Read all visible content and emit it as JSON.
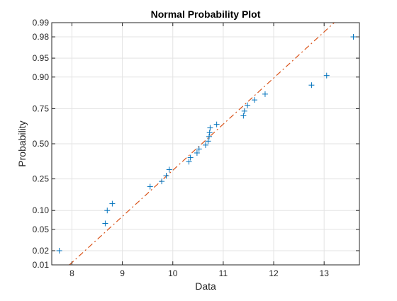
{
  "chart_data": {
    "type": "scatter",
    "title": "Normal Probability Plot",
    "xlabel": "Data",
    "ylabel": "Probability",
    "xlim": [
      7.6,
      13.7
    ],
    "ylim": [
      0.01,
      0.99
    ],
    "y_scale": "normal-probability",
    "grid": true,
    "legend": "none",
    "x_ticks": [
      8,
      9,
      10,
      11,
      12,
      13
    ],
    "x_tick_labels": [
      "8",
      "9",
      "10",
      "11",
      "12",
      "13"
    ],
    "y_ticks": [
      0.01,
      0.02,
      0.05,
      0.1,
      0.25,
      0.5,
      0.75,
      0.9,
      0.95,
      0.98,
      0.99
    ],
    "y_tick_labels": [
      "0.01",
      "0.02",
      "0.05",
      "0.10",
      "0.25",
      "0.50",
      "0.75",
      "0.90",
      "0.95",
      "0.98",
      "0.99"
    ],
    "series": [
      {
        "marker": "+",
        "color": "#0072BD",
        "points": [
          [
            7.75,
            0.02
          ],
          [
            8.66,
            0.063
          ],
          [
            8.7,
            0.1
          ],
          [
            8.8,
            0.125
          ],
          [
            9.55,
            0.205
          ],
          [
            9.78,
            0.235
          ],
          [
            9.87,
            0.27
          ],
          [
            9.93,
            0.31
          ],
          [
            10.32,
            0.365
          ],
          [
            10.35,
            0.395
          ],
          [
            10.48,
            0.43
          ],
          [
            10.52,
            0.46
          ],
          [
            10.65,
            0.49
          ],
          [
            10.7,
            0.52
          ],
          [
            10.72,
            0.555
          ],
          [
            10.73,
            0.585
          ],
          [
            10.74,
            0.62
          ],
          [
            10.87,
            0.645
          ],
          [
            11.4,
            0.705
          ],
          [
            11.42,
            0.735
          ],
          [
            11.48,
            0.77
          ],
          [
            11.62,
            0.8
          ],
          [
            11.83,
            0.83
          ],
          [
            12.75,
            0.87
          ],
          [
            13.05,
            0.905
          ],
          [
            13.58,
            0.98
          ]
        ]
      }
    ],
    "reference_line": {
      "style": "dash-dot",
      "color": "#D95319",
      "points": [
        [
          7.95,
          0.01
        ],
        [
          13.2,
          0.99
        ]
      ]
    }
  }
}
